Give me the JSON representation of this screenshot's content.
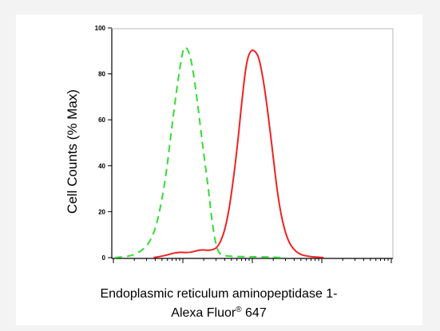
{
  "chart_data": {
    "type": "line",
    "title": "",
    "ylabel": "Cell Counts (% Max)",
    "xlabel_line1": "Endoplasmic reticulum aminopeptidase 1-",
    "xlabel_line2_main": "Alexa Fluor",
    "xlabel_line2_sup": "®",
    "xlabel_line2_end": " 647",
    "ylim": [
      0,
      100
    ],
    "yticks": [
      "0",
      "20",
      "40",
      "60",
      "80",
      "100"
    ],
    "xscale": "log",
    "grid": false,
    "legend": "none",
    "series": [
      {
        "color": "#33dd33",
        "style": "dashed",
        "points": [
          [
            0,
            0
          ],
          [
            0.08,
            1
          ],
          [
            0.14,
            8
          ],
          [
            0.18,
            30
          ],
          [
            0.21,
            60
          ],
          [
            0.235,
            82
          ],
          [
            0.25,
            92
          ],
          [
            0.265,
            91
          ],
          [
            0.28,
            85
          ],
          [
            0.3,
            68
          ],
          [
            0.32,
            48
          ],
          [
            0.34,
            30
          ],
          [
            0.355,
            14
          ],
          [
            0.37,
            4
          ],
          [
            0.385,
            1
          ],
          [
            0.42,
            0.5
          ],
          [
            0.55,
            0.3
          ],
          [
            0.62,
            0
          ]
        ]
      },
      {
        "color": "#ee2222",
        "style": "solid",
        "points": [
          [
            0.14,
            0
          ],
          [
            0.18,
            0.8
          ],
          [
            0.23,
            2.5
          ],
          [
            0.27,
            2
          ],
          [
            0.31,
            3.5
          ],
          [
            0.35,
            3
          ],
          [
            0.38,
            5
          ],
          [
            0.41,
            16
          ],
          [
            0.44,
            42
          ],
          [
            0.465,
            72
          ],
          [
            0.48,
            86
          ],
          [
            0.495,
            90.5
          ],
          [
            0.51,
            90
          ],
          [
            0.525,
            87
          ],
          [
            0.545,
            74
          ],
          [
            0.57,
            50
          ],
          [
            0.595,
            24
          ],
          [
            0.625,
            8
          ],
          [
            0.66,
            2
          ],
          [
            0.7,
            0.5
          ],
          [
            0.76,
            0
          ]
        ]
      }
    ]
  }
}
